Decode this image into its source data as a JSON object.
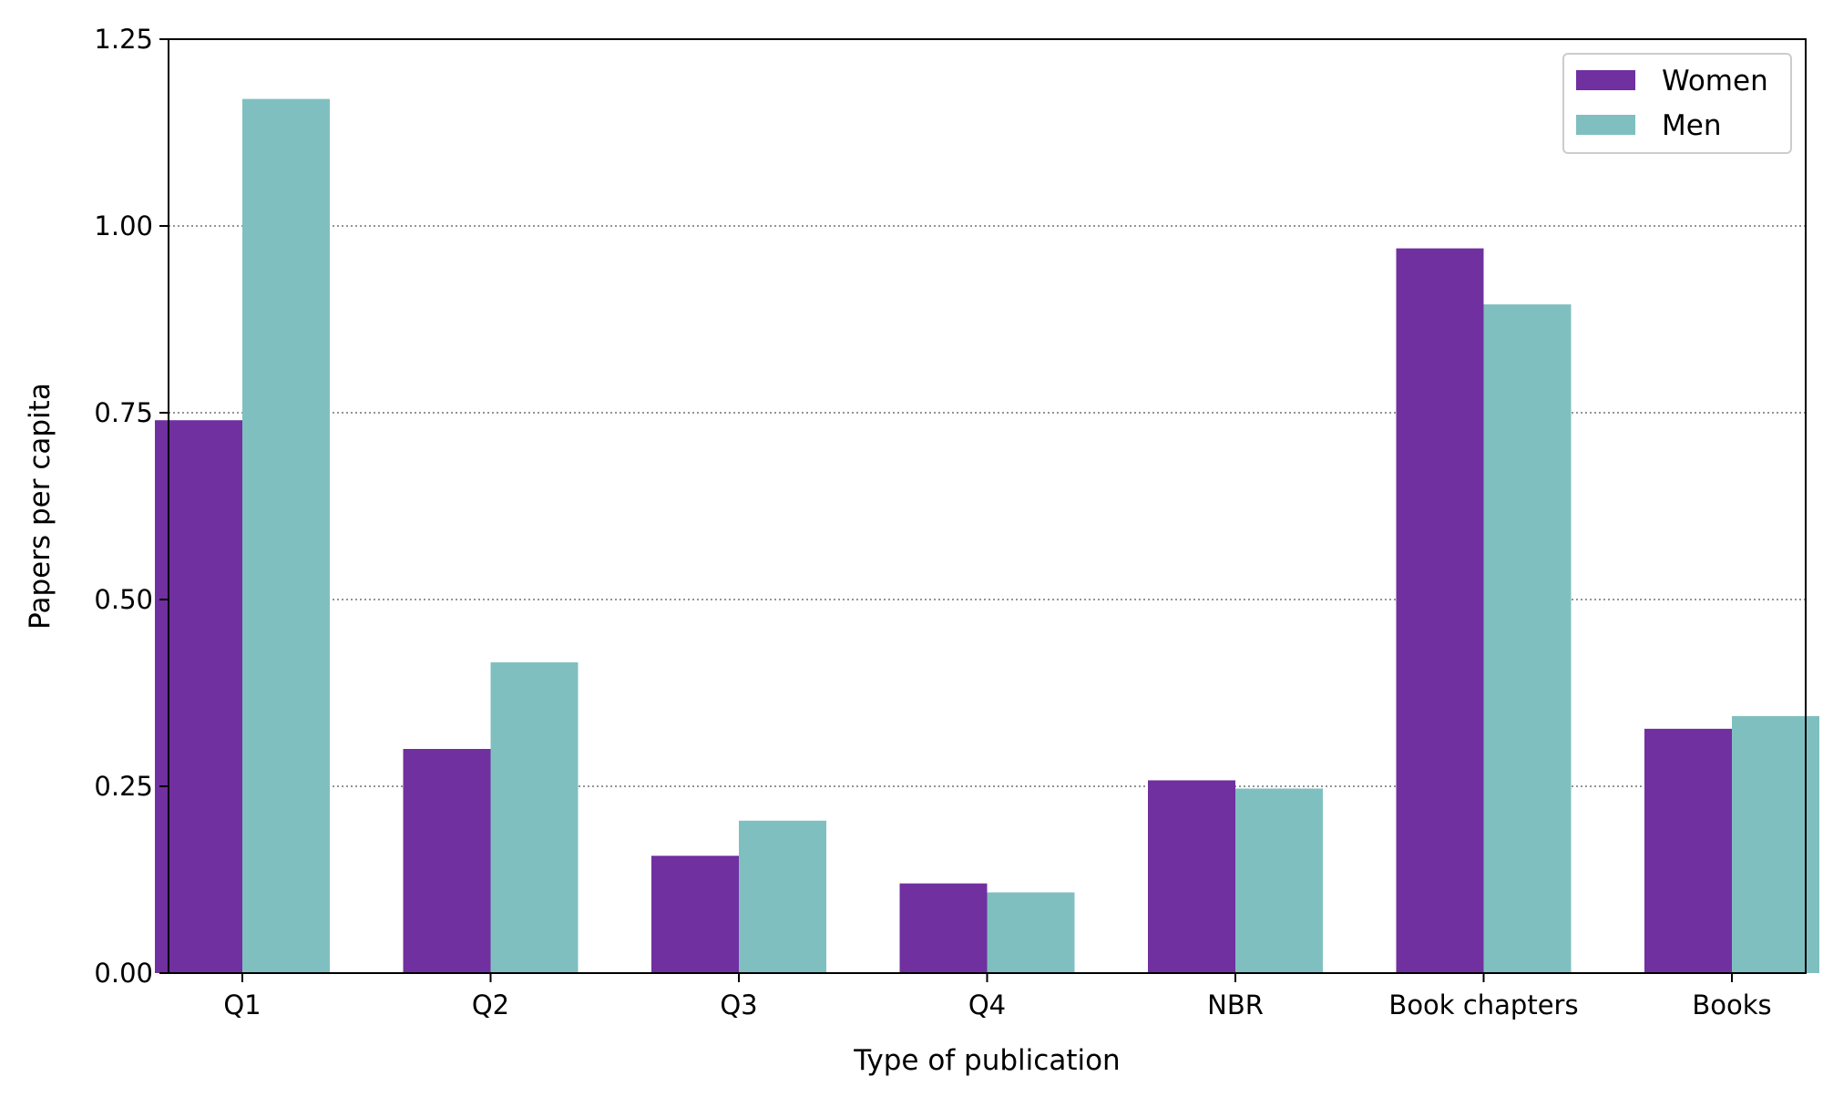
{
  "chart_data": {
    "type": "bar",
    "xlabel": "Type of publication",
    "ylabel": "Papers per capita",
    "categories": [
      "Q1",
      "Q2",
      "Q3",
      "Q4",
      "NBR",
      "Book chapters",
      "Books"
    ],
    "series": [
      {
        "name": "Women",
        "color": "#7030a0",
        "values": [
          0.74,
          0.3,
          0.157,
          0.12,
          0.258,
          0.97,
          0.327
        ]
      },
      {
        "name": "Men",
        "color": "#80bfbf",
        "values": [
          1.17,
          0.416,
          0.204,
          0.108,
          0.247,
          0.895,
          0.344
        ]
      }
    ],
    "ylim": [
      0,
      1.25
    ],
    "yticks": [
      "0.00",
      "0.25",
      "0.50",
      "0.75",
      "1.00",
      "1.25"
    ],
    "grid": {
      "axis": "y",
      "style": "dotted"
    },
    "legend": {
      "position": "top-right"
    }
  }
}
